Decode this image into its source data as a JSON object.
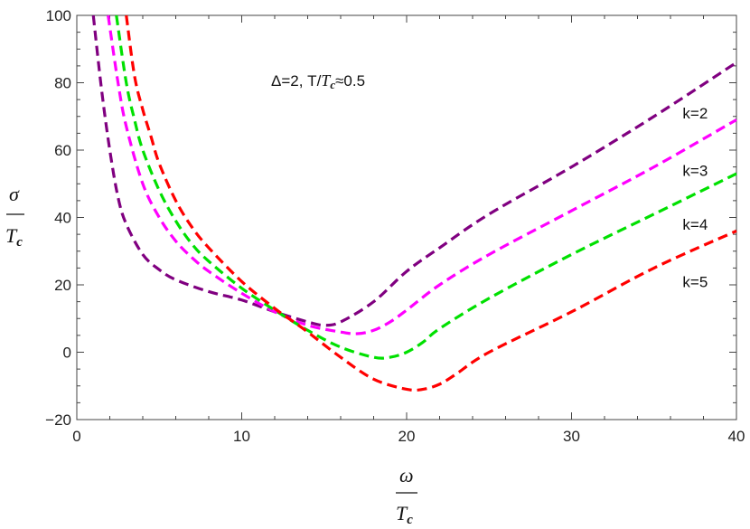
{
  "chart_data": {
    "type": "line",
    "title": "",
    "annotation": {
      "prefix": "Δ=2,  T/",
      "T": "T",
      "c": "c",
      "suffix": "≈0.5"
    },
    "xlabel": {
      "num": "ω",
      "den_T": "T",
      "den_c": "c"
    },
    "ylabel": {
      "num": "σ",
      "den_T": "T",
      "den_c": "c"
    },
    "xlim": [
      0,
      40
    ],
    "ylim": [
      -20,
      100
    ],
    "xticks": [
      0,
      10,
      20,
      30,
      40
    ],
    "yticks": [
      -20,
      0,
      20,
      40,
      60,
      80,
      100
    ],
    "grid": false,
    "series": [
      {
        "name": "k=2",
        "color": "#800080",
        "x": [
          1.0,
          1.5,
          2.0,
          2.5,
          3.0,
          4.0,
          5.0,
          6.0,
          8.0,
          10.0,
          12.0,
          14.0,
          15.0,
          16.0,
          18.0,
          20.0,
          22.0,
          25.0,
          30.0,
          35.0,
          40.0
        ],
        "y": [
          100,
          78,
          60,
          46,
          38,
          29,
          24.5,
          21.5,
          18,
          15.5,
          12,
          9,
          8,
          9,
          15,
          24,
          31,
          41,
          55,
          70,
          86
        ]
      },
      {
        "name": "k=3",
        "color": "#ff00ff",
        "x": [
          1.9,
          2.5,
          3.0,
          4.0,
          5.0,
          6.0,
          7.0,
          8.0,
          10.0,
          12.0,
          14.0,
          16.0,
          17.0,
          18.0,
          19.0,
          20.0,
          22.0,
          25.0,
          30.0,
          35.0,
          40.0
        ],
        "y": [
          100,
          80,
          67,
          50,
          40,
          33,
          28,
          24,
          17.5,
          12,
          8,
          6,
          5.5,
          6.5,
          9,
          12.5,
          20,
          29,
          42,
          55,
          69
        ]
      },
      {
        "name": "k=4",
        "color": "#00e000",
        "x": [
          2.4,
          3.0,
          3.5,
          4.0,
          5.0,
          6.0,
          7.0,
          8.0,
          10.0,
          12.0,
          14.0,
          16.0,
          18.0,
          19.0,
          20.0,
          21.0,
          22.0,
          25.0,
          30.0,
          35.0,
          40.0
        ],
        "y": [
          100,
          80,
          69,
          60,
          48,
          39,
          32,
          27,
          19,
          12.5,
          6.5,
          1.5,
          -1.5,
          -1.5,
          0,
          3,
          7,
          16,
          29,
          41,
          53
        ]
      },
      {
        "name": "k=5",
        "color": "#ff0000",
        "x": [
          3.0,
          3.5,
          4.0,
          4.5,
          5.0,
          6.0,
          7.0,
          8.0,
          10.0,
          12.0,
          13.0,
          14.0,
          16.0,
          18.0,
          20.0,
          21.0,
          22.0,
          23.0,
          25.0,
          30.0,
          35.0,
          40.0
        ],
        "y": [
          100,
          82,
          72,
          64,
          56,
          45,
          37,
          31,
          21,
          13,
          9.5,
          6,
          -1.5,
          -8,
          -11,
          -11,
          -9.5,
          -6.5,
          0,
          12,
          25,
          36
        ]
      }
    ],
    "label_positions_note": ""
  }
}
